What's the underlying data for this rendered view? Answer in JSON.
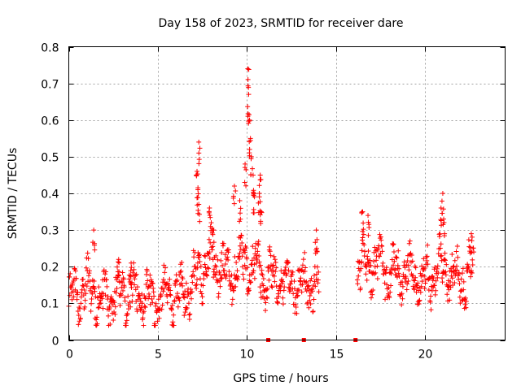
{
  "chart_data": {
    "type": "scatter",
    "title": "Day 158 of 2023, SRMTID for receiver dare",
    "xlabel": "GPS time / hours",
    "ylabel": "SRMTID / TECUs",
    "xlim": [
      0,
      24.5
    ],
    "ylim": [
      0,
      0.8
    ],
    "x_ticks": [
      0,
      5,
      10,
      15,
      20
    ],
    "y_ticks": [
      0,
      0.1,
      0.2,
      0.3,
      0.4,
      0.5,
      0.6,
      0.7,
      0.8
    ],
    "grid": true,
    "marker": "plus",
    "color": "#ff0000",
    "series": [
      {
        "name": "SRMTID",
        "segments": [
          {
            "x_start": 0.0,
            "x_end": 14.05,
            "baseline": [
              [
                0,
                0.12
              ],
              [
                1,
                0.14
              ],
              [
                2,
                0.11
              ],
              [
                3,
                0.13
              ],
              [
                4,
                0.12
              ],
              [
                5,
                0.11
              ],
              [
                6,
                0.12
              ],
              [
                7,
                0.15
              ],
              [
                7.5,
                0.2
              ],
              [
                8,
                0.22
              ],
              [
                9,
                0.18
              ],
              [
                9.6,
                0.22
              ],
              [
                10,
                0.2
              ],
              [
                10.5,
                0.2
              ],
              [
                11,
                0.17
              ],
              [
                12,
                0.16
              ],
              [
                13,
                0.15
              ],
              [
                14,
                0.15
              ]
            ]
          },
          {
            "x_start": 16.2,
            "x_end": 22.75,
            "baseline": [
              [
                16.2,
                0.2
              ],
              [
                17,
                0.21
              ],
              [
                18,
                0.18
              ],
              [
                19,
                0.18
              ],
              [
                20,
                0.16
              ],
              [
                21,
                0.2
              ],
              [
                22,
                0.16
              ],
              [
                22.75,
                0.2
              ]
            ]
          }
        ],
        "peaks": [
          [
            1.4,
            0.3
          ],
          [
            2.8,
            0.22
          ],
          [
            3.5,
            0.21
          ],
          [
            7.3,
            0.54
          ],
          [
            7.2,
            0.46
          ],
          [
            7.25,
            0.41
          ],
          [
            7.3,
            0.37
          ],
          [
            7.9,
            0.36
          ],
          [
            8.1,
            0.3
          ],
          [
            9.3,
            0.42
          ],
          [
            9.6,
            0.38
          ],
          [
            9.9,
            0.48
          ],
          [
            10.05,
            0.74
          ],
          [
            10.1,
            0.67
          ],
          [
            10.15,
            0.6
          ],
          [
            10.2,
            0.55
          ],
          [
            10.25,
            0.5
          ],
          [
            10.35,
            0.45
          ],
          [
            10.4,
            0.4
          ],
          [
            10.75,
            0.45
          ],
          [
            10.7,
            0.4
          ],
          [
            10.8,
            0.35
          ],
          [
            13.9,
            0.3
          ],
          [
            16.5,
            0.35
          ],
          [
            16.8,
            0.34
          ],
          [
            21.0,
            0.4
          ],
          [
            20.9,
            0.36
          ],
          [
            21.05,
            0.33
          ],
          [
            22.6,
            0.29
          ]
        ],
        "markers_at_zero": [
          11.2,
          13.2,
          16.1
        ]
      }
    ]
  }
}
